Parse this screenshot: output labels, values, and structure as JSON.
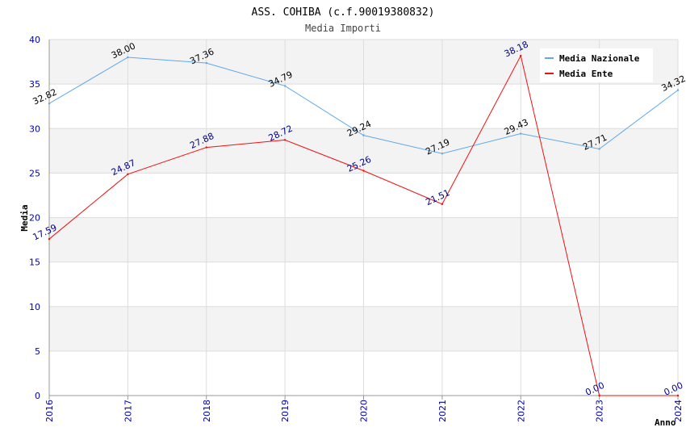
{
  "chart_data": {
    "type": "line",
    "title": "ASS. COHIBA (c.f.90019380832)",
    "subtitle": "Media Importi",
    "xlabel": "Anno",
    "ylabel": "Media",
    "x": [
      "2016",
      "2017",
      "2018",
      "2019",
      "2020",
      "2021",
      "2022",
      "2023",
      "2024"
    ],
    "ylim": [
      0,
      40
    ],
    "yticks": [
      0,
      5,
      10,
      15,
      20,
      25,
      30,
      35,
      40
    ],
    "grid": true,
    "legend_position": "top-right",
    "series": [
      {
        "name": "Media Nazionale",
        "color": "#5da9e9",
        "label_color": "#000000",
        "values": [
          32.82,
          38.0,
          37.36,
          34.79,
          29.24,
          27.19,
          29.43,
          27.71,
          34.32
        ],
        "labels": [
          "32.82",
          "38.00",
          "37.36",
          "34.79",
          "29.24",
          "27.19",
          "29.43",
          "27.71",
          "34.32"
        ]
      },
      {
        "name": "Media Ente",
        "color": "#ee1111",
        "label_color": "#00008b",
        "values": [
          17.59,
          24.87,
          27.88,
          28.72,
          25.26,
          21.51,
          38.18,
          0.0,
          0.0
        ],
        "labels": [
          "17.59",
          "24.87",
          "27.88",
          "28.72",
          "25.26",
          "21.51",
          "38.18",
          "0.00",
          "0.00"
        ]
      }
    ],
    "colors": {
      "band_shade": "#f3f3f3",
      "grid_line": "#dddddd",
      "tick_label": "#0000aa",
      "axis_title": "#000000"
    }
  }
}
